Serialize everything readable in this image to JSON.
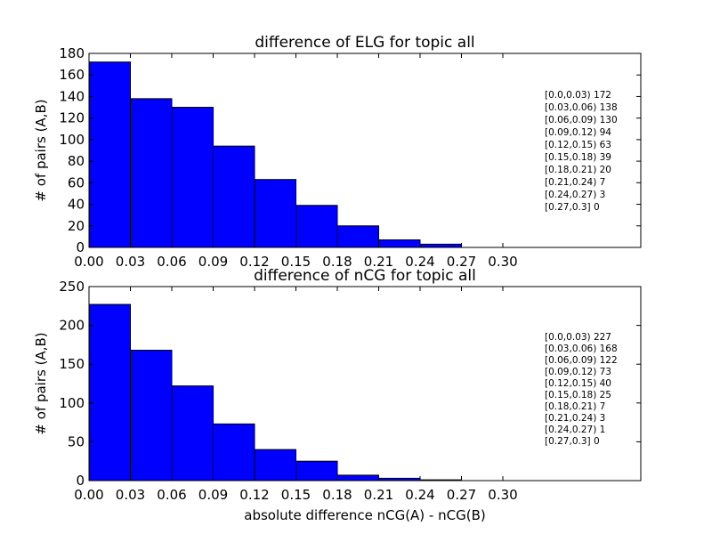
{
  "chart_data": [
    {
      "type": "bar",
      "title": "difference of ELG for topic all",
      "xlabel": "",
      "ylabel": "# of pairs (A,B)",
      "bins": [
        "[0.0,0.03)",
        "[0.03,0.06)",
        "[0.06,0.09)",
        "[0.09,0.12)",
        "[0.12,0.15)",
        "[0.15,0.18)",
        "[0.18,0.21)",
        "[0.21,0.24)",
        "[0.24,0.27)",
        "[0.27,0.3]"
      ],
      "bin_edges": [
        0.0,
        0.03,
        0.06,
        0.09,
        0.12,
        0.15,
        0.18,
        0.21,
        0.24,
        0.27,
        0.3
      ],
      "values": [
        172,
        138,
        130,
        94,
        63,
        39,
        20,
        7,
        3,
        0
      ],
      "xlim": [
        0.0,
        0.4
      ],
      "ylim": [
        0,
        180
      ],
      "xticks": [
        "0.00",
        "0.03",
        "0.06",
        "0.09",
        "0.12",
        "0.15",
        "0.18",
        "0.21",
        "0.24",
        "0.27",
        "0.30"
      ],
      "yticks": [
        0,
        20,
        40,
        60,
        80,
        100,
        120,
        140,
        160,
        180
      ],
      "annotations": [
        "[0.0,0.03) 172",
        "[0.03,0.06) 138",
        "[0.06,0.09) 130",
        "[0.09,0.12) 94",
        "[0.12,0.15) 63",
        "[0.15,0.18) 39",
        "[0.18,0.21) 20",
        "[0.21,0.24) 7",
        "[0.24,0.27) 3",
        "[0.27,0.3] 0"
      ],
      "bar_color": "#0000ff",
      "grid": false
    },
    {
      "type": "bar",
      "title": "difference of nCG for topic all",
      "xlabel": "absolute difference nCG(A) - nCG(B)",
      "ylabel": "# of pairs (A,B)",
      "bins": [
        "[0.0,0.03)",
        "[0.03,0.06)",
        "[0.06,0.09)",
        "[0.09,0.12)",
        "[0.12,0.15)",
        "[0.15,0.18)",
        "[0.18,0.21)",
        "[0.21,0.24)",
        "[0.24,0.27)",
        "[0.27,0.3]"
      ],
      "bin_edges": [
        0.0,
        0.03,
        0.06,
        0.09,
        0.12,
        0.15,
        0.18,
        0.21,
        0.24,
        0.27,
        0.3
      ],
      "values": [
        227,
        168,
        122,
        73,
        40,
        25,
        7,
        3,
        1,
        0
      ],
      "xlim": [
        0.0,
        0.4
      ],
      "ylim": [
        0,
        250
      ],
      "xticks": [
        "0.00",
        "0.03",
        "0.06",
        "0.09",
        "0.12",
        "0.15",
        "0.18",
        "0.21",
        "0.24",
        "0.27",
        "0.30"
      ],
      "yticks": [
        0,
        50,
        100,
        150,
        200,
        250
      ],
      "annotations": [
        "[0.0,0.03) 227",
        "[0.03,0.06) 168",
        "[0.06,0.09) 122",
        "[0.09,0.12) 73",
        "[0.12,0.15) 40",
        "[0.15,0.18) 25",
        "[0.18,0.21) 7",
        "[0.21,0.24) 3",
        "[0.24,0.27) 1",
        "[0.27,0.3] 0"
      ],
      "bar_color": "#0000ff",
      "grid": false
    }
  ]
}
